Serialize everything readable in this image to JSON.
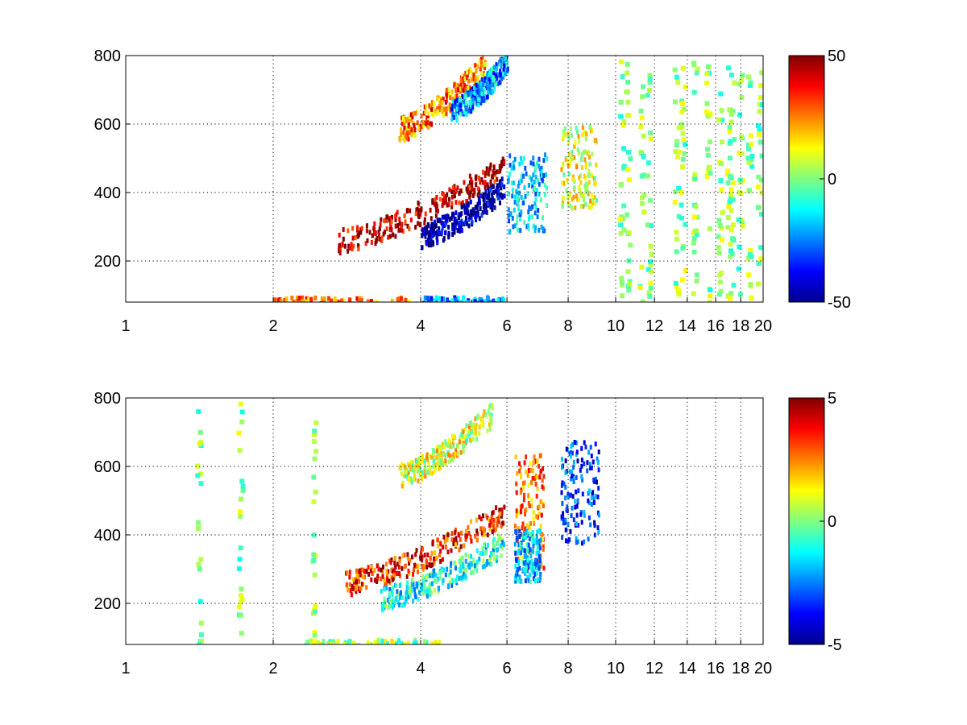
{
  "chart_data": [
    {
      "type": "heatmap",
      "title": "",
      "xlabel": "",
      "ylabel": "",
      "x_scale": "log",
      "xlim": [
        1,
        20
      ],
      "ylim": [
        80,
        800
      ],
      "x_ticks": [
        1,
        2,
        4,
        6,
        8,
        10,
        12,
        14,
        16,
        18,
        20
      ],
      "y_ticks": [
        200,
        400,
        600,
        800
      ],
      "grid": true,
      "colormap": "jet",
      "color_limits": [
        -50,
        50
      ],
      "colorbar_ticks": [
        50,
        0,
        -50
      ],
      "features": [
        {
          "kind": "ridge",
          "x_range": [
            2.7,
            5.9
          ],
          "y_start": 265,
          "y_end": 480,
          "value": 45
        },
        {
          "kind": "ridge",
          "x_range": [
            4.0,
            5.9
          ],
          "y_start": 280,
          "y_end": 420,
          "value": -48
        },
        {
          "kind": "ridge",
          "x_range": [
            3.6,
            5.4
          ],
          "y_start": 590,
          "y_end": 780,
          "value": 25
        },
        {
          "kind": "ridge",
          "x_range": [
            4.6,
            6.0
          ],
          "y_start": 640,
          "y_end": 790,
          "value": -22
        },
        {
          "kind": "band",
          "x_range": [
            2.0,
            3.9
          ],
          "y_range": [
            80,
            100
          ],
          "value": 25
        },
        {
          "kind": "band",
          "x_range": [
            3.9,
            5.9
          ],
          "y_range": [
            80,
            100
          ],
          "value": -25
        },
        {
          "kind": "cluster",
          "x_range": [
            7.7,
            9.1
          ],
          "y_range": [
            360,
            600
          ],
          "value": 10
        },
        {
          "kind": "cluster",
          "x_range": [
            6.0,
            7.2
          ],
          "y_range": [
            290,
            520
          ],
          "value": -18
        }
      ],
      "scatter_columns_x": [
        10.2,
        10.5,
        11.2,
        11.6,
        13.2,
        13.6,
        14.4,
        15.3,
        16.2,
        16.9,
        17.1,
        17.8,
        18.6,
        19.5
      ]
    },
    {
      "type": "heatmap",
      "title": "",
      "xlabel": "",
      "ylabel": "",
      "x_scale": "log",
      "xlim": [
        1,
        20
      ],
      "ylim": [
        80,
        800
      ],
      "x_ticks": [
        1,
        2,
        4,
        6,
        8,
        10,
        12,
        14,
        16,
        18,
        20
      ],
      "y_ticks": [
        200,
        400,
        600,
        800
      ],
      "grid": true,
      "colormap": "jet",
      "color_limits": [
        -5,
        5
      ],
      "colorbar_ticks": [
        5,
        0,
        -5
      ],
      "features": [
        {
          "kind": "ridge",
          "x_range": [
            2.8,
            5.9
          ],
          "y_start": 265,
          "y_end": 470,
          "value": 3.5
        },
        {
          "kind": "ridge",
          "x_range": [
            3.3,
            5.9
          ],
          "y_start": 220,
          "y_end": 380,
          "value": -1.0
        },
        {
          "kind": "ridge",
          "x_range": [
            3.6,
            5.6
          ],
          "y_start": 580,
          "y_end": 760,
          "value": 0.8
        },
        {
          "kind": "cluster",
          "x_range": [
            6.2,
            7.1
          ],
          "y_range": [
            300,
            640
          ],
          "value": 2.5
        },
        {
          "kind": "cluster",
          "x_range": [
            6.2,
            7.0
          ],
          "y_range": [
            270,
            420
          ],
          "value": -2.0
        },
        {
          "kind": "cluster",
          "x_range": [
            7.7,
            9.2
          ],
          "y_range": [
            380,
            680
          ],
          "value": -3.2
        },
        {
          "kind": "band",
          "x_range": [
            2.3,
            4.4
          ],
          "y_range": [
            80,
            100
          ],
          "value": 0.2
        }
      ],
      "scatter_columns_x": [
        1.4,
        1.7,
        2.4
      ]
    }
  ]
}
